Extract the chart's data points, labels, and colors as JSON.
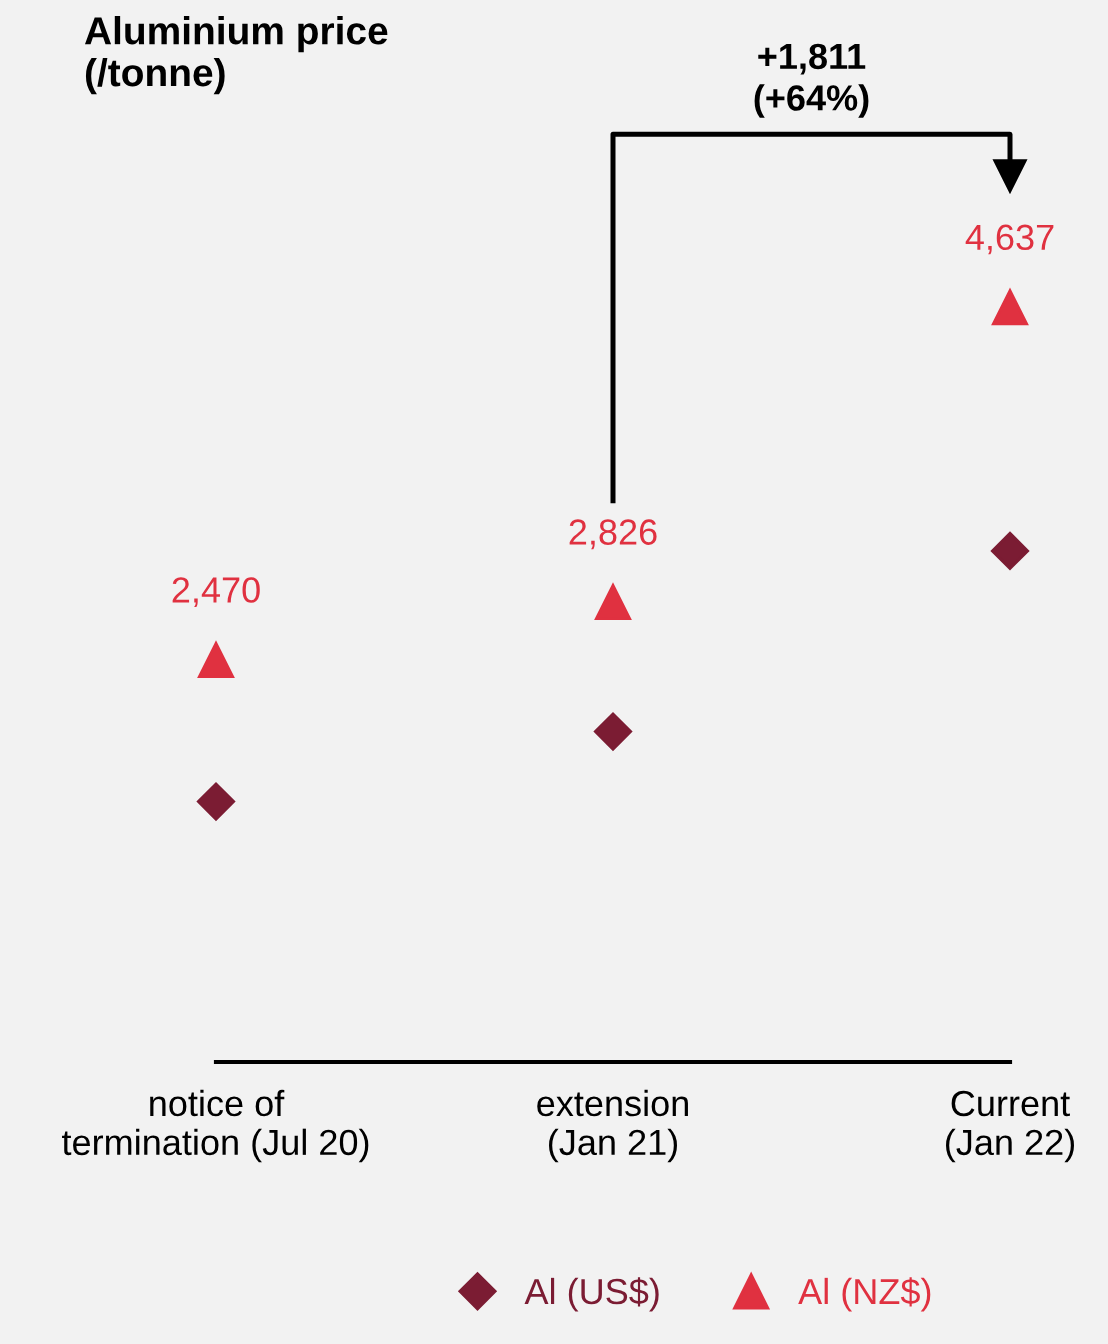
{
  "chart_data": {
    "type": "scatter",
    "title": "Aluminium price\n(/tonne)",
    "categories": [
      "notice of\ntermination (Jul 20)",
      "extension\n(Jan 21)",
      "Current\n(Jan 22)"
    ],
    "series": [
      {
        "name": "Al (US$)",
        "color": "#7b1c33",
        "marker": "diamond",
        "values": [
          1600,
          2030,
          3140
        ]
      },
      {
        "name": "Al (NZ$)",
        "color": "#e03140",
        "marker": "triangle",
        "values": [
          2470,
          2826,
          4637
        ],
        "value_labels": [
          "2,470",
          "2,826",
          "4,637"
        ]
      }
    ],
    "annotations": [
      "+1,811\n(+64%)"
    ],
    "ylim": [
      0,
      6500
    ],
    "tick_labels": "x",
    "grid": false,
    "legend": "bottom"
  }
}
